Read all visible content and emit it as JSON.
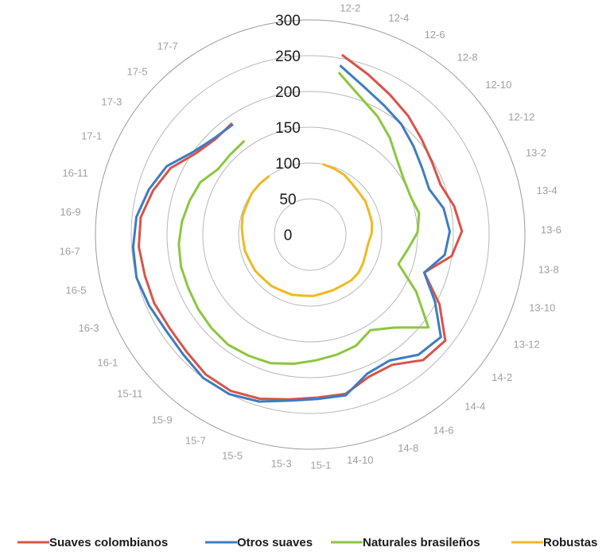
{
  "chart_data": {
    "type": "radar",
    "title": "",
    "rlim": [
      0,
      300
    ],
    "ring_values": [
      0,
      50,
      100,
      150,
      200,
      250,
      300
    ],
    "ring_labels": [
      "0",
      "50",
      "100",
      "150",
      "200",
      "250",
      "300"
    ],
    "tick_labels": [
      "12-2",
      "12-4",
      "12-6",
      "12-8",
      "12-10",
      "12-12",
      "13-2",
      "13-4",
      "13-6",
      "13-8",
      "13-10",
      "13-12",
      "14-2",
      "14-4",
      "14-6",
      "14-8",
      "14-10",
      "15-1",
      "15-3",
      "15-5",
      "15-7",
      "15-9",
      "15-11",
      "16-1",
      "16-3",
      "16-5",
      "16-7",
      "16-9",
      "16-11",
      "17-1",
      "17-3",
      "17-5",
      "17-7"
    ],
    "legend_position": "bottom",
    "grid": true,
    "series": [
      {
        "name": "Suaves colombianos",
        "color": "#d9534a",
        "values": [
          255,
          238,
          225,
          215,
          205,
          198,
          195,
          205,
          212,
          200,
          168,
          205,
          240,
          236,
          215,
          215,
          228,
          228,
          232,
          240,
          245,
          244,
          238,
          236,
          238,
          238,
          240,
          238,
          228,
          216,
          196,
          188,
          190
        ]
      },
      {
        "name": "Otros suaves",
        "color": "#3e7cc0",
        "values": [
          240,
          220,
          208,
          200,
          190,
          182,
          178,
          190,
          195,
          190,
          168,
          198,
          232,
          226,
          208,
          210,
          230,
          230,
          234,
          244,
          250,
          250,
          244,
          242,
          246,
          250,
          248,
          244,
          234,
          222,
          200,
          190,
          188
        ]
      },
      {
        "name": "Naturales brasileños",
        "color": "#8cc63f",
        "values": [
          230,
          205,
          190,
          175,
          160,
          152,
          150,
          155,
          150,
          138,
          130,
          168,
          210,
          175,
          158,
          168,
          172,
          176,
          182,
          188,
          190,
          192,
          190,
          188,
          186,
          186,
          184,
          180,
          175,
          170,
          158,
          158,
          160
        ]
      },
      {
        "name": "Robustas",
        "color": "#f2b820",
        "values": [
          100,
          98,
          96,
          92,
          90,
          90,
          88,
          88,
          86,
          82,
          82,
          84,
          86,
          86,
          84,
          84,
          84,
          86,
          86,
          88,
          88,
          90,
          90,
          92,
          92,
          94,
          94,
          96,
          98,
          98,
          100,
          100,
          100
        ]
      }
    ]
  }
}
